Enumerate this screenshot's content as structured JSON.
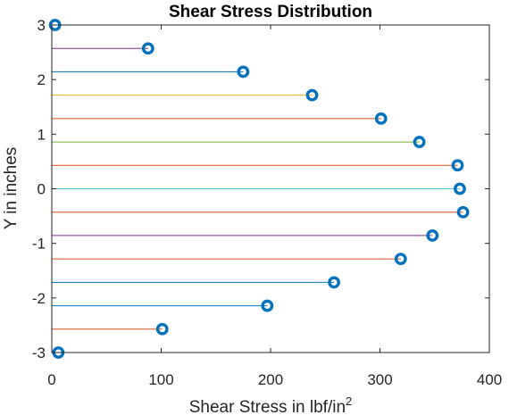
{
  "chart_data": {
    "type": "scatter",
    "title": "Shear Stress Distribution",
    "xlabel": "Shear Stress in lbf/in",
    "xlabel_superscript": "2",
    "ylabel": "Y in inches",
    "xlim": [
      0,
      400
    ],
    "ylim": [
      -3,
      3
    ],
    "xticks": [
      0,
      100,
      200,
      300,
      400
    ],
    "yticks": [
      -3,
      -2,
      -1,
      0,
      1,
      2,
      3
    ],
    "grid": false,
    "marker_color": "#0072BD",
    "points": [
      {
        "y": 3.0,
        "x": 3,
        "line_color": "#0072BD"
      },
      {
        "y": 2.571,
        "x": 88,
        "line_color": "#7E2F8E"
      },
      {
        "y": 2.143,
        "x": 175,
        "line_color": "#0072BD"
      },
      {
        "y": 1.714,
        "x": 238,
        "line_color": "#EDB120"
      },
      {
        "y": 1.286,
        "x": 301,
        "line_color": "#D95319"
      },
      {
        "y": 0.857,
        "x": 336,
        "line_color": "#77AC30"
      },
      {
        "y": 0.429,
        "x": 371,
        "line_color": "#D95319"
      },
      {
        "y": 0.0,
        "x": 373,
        "line_color": "#4DBEEE"
      },
      {
        "y": -0.429,
        "x": 376,
        "line_color": "#D95319"
      },
      {
        "y": -0.857,
        "x": 348,
        "line_color": "#7E2F8E"
      },
      {
        "y": -1.286,
        "x": 319,
        "line_color": "#D95319"
      },
      {
        "y": -1.714,
        "x": 258,
        "line_color": "#0072BD"
      },
      {
        "y": -2.143,
        "x": 197,
        "line_color": "#0072BD"
      },
      {
        "y": -2.571,
        "x": 101,
        "line_color": "#D95319"
      },
      {
        "y": -3.0,
        "x": 6,
        "line_color": "#0072BD"
      }
    ]
  }
}
